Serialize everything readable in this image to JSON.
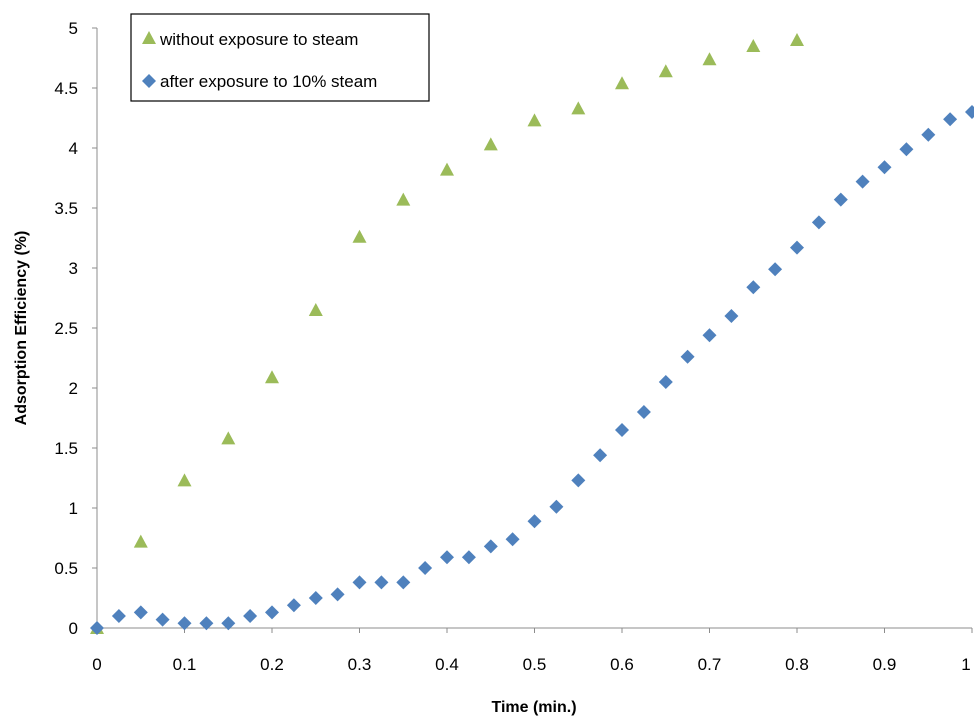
{
  "chart_data": {
    "type": "scatter",
    "title": "",
    "xlabel": "Time (min.)",
    "ylabel": "Adsorption Efficiency (%)",
    "xlim": [
      0,
      1
    ],
    "ylim": [
      0,
      5
    ],
    "xticks": [
      "0",
      "0.1",
      "0.2",
      "0.3",
      "0.4",
      "0.5",
      "0.6",
      "0.7",
      "0.8",
      "0.9",
      "1"
    ],
    "yticks": [
      "0",
      "0.5",
      "1",
      "1.5",
      "2",
      "2.5",
      "3",
      "3.5",
      "4",
      "4.5",
      "5"
    ],
    "grid": false,
    "legend_position": "top-left",
    "series": [
      {
        "name": "without exposure to steam",
        "marker": "triangle",
        "color": "#9bbb59",
        "points": [
          [
            0,
            0
          ],
          [
            0.05,
            0.72
          ],
          [
            0.1,
            1.23
          ],
          [
            0.15,
            1.58
          ],
          [
            0.2,
            2.09
          ],
          [
            0.25,
            2.65
          ],
          [
            0.3,
            3.26
          ],
          [
            0.35,
            3.57
          ],
          [
            0.4,
            3.82
          ],
          [
            0.45,
            4.03
          ],
          [
            0.5,
            4.23
          ],
          [
            0.55,
            4.33
          ],
          [
            0.6,
            4.54
          ],
          [
            0.65,
            4.64
          ],
          [
            0.7,
            4.74
          ],
          [
            0.75,
            4.85
          ],
          [
            0.8,
            4.9
          ]
        ]
      },
      {
        "name": "after exposure to 10% steam",
        "marker": "diamond",
        "color": "#4f81bd",
        "points": [
          [
            0,
            0
          ],
          [
            0.025,
            0.1
          ],
          [
            0.05,
            0.13
          ],
          [
            0.075,
            0.07
          ],
          [
            0.1,
            0.04
          ],
          [
            0.125,
            0.04
          ],
          [
            0.15,
            0.04
          ],
          [
            0.175,
            0.1
          ],
          [
            0.2,
            0.13
          ],
          [
            0.225,
            0.19
          ],
          [
            0.25,
            0.25
          ],
          [
            0.275,
            0.28
          ],
          [
            0.3,
            0.38
          ],
          [
            0.325,
            0.38
          ],
          [
            0.35,
            0.38
          ],
          [
            0.375,
            0.5
          ],
          [
            0.4,
            0.59
          ],
          [
            0.425,
            0.59
          ],
          [
            0.45,
            0.68
          ],
          [
            0.475,
            0.74
          ],
          [
            0.5,
            0.89
          ],
          [
            0.525,
            1.01
          ],
          [
            0.55,
            1.23
          ],
          [
            0.575,
            1.44
          ],
          [
            0.6,
            1.65
          ],
          [
            0.625,
            1.8
          ],
          [
            0.65,
            2.05
          ],
          [
            0.675,
            2.26
          ],
          [
            0.7,
            2.44
          ],
          [
            0.725,
            2.6
          ],
          [
            0.75,
            2.84
          ],
          [
            0.775,
            2.99
          ],
          [
            0.8,
            3.17
          ],
          [
            0.825,
            3.38
          ],
          [
            0.85,
            3.57
          ],
          [
            0.875,
            3.72
          ],
          [
            0.9,
            3.84
          ],
          [
            0.925,
            3.99
          ],
          [
            0.95,
            4.11
          ],
          [
            0.975,
            4.24
          ],
          [
            1,
            4.3
          ]
        ]
      }
    ]
  }
}
